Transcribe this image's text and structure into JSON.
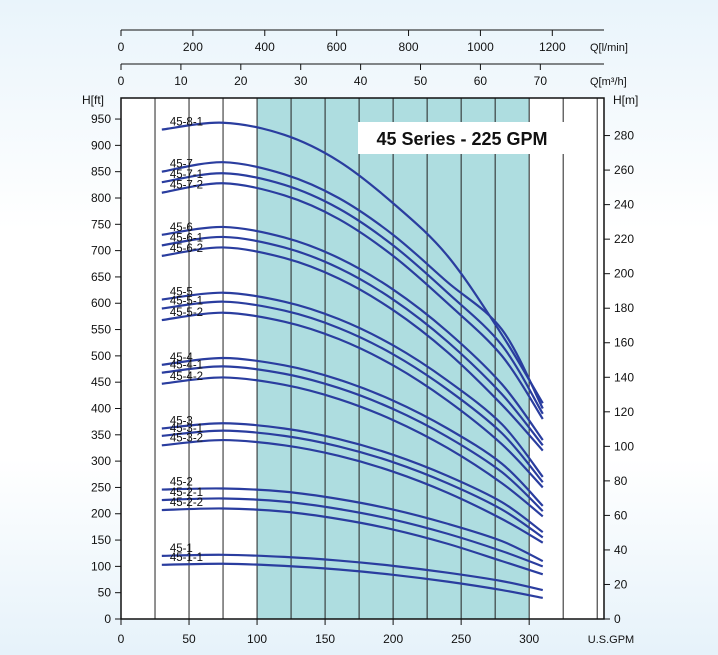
{
  "chart_data": {
    "type": "line",
    "title": "45 Series - 225 GPM",
    "x_axis_bottom": {
      "unit": "U.S.GPM",
      "ticks": [
        0,
        50,
        100,
        150,
        200,
        250,
        300
      ],
      "range": [
        0,
        355
      ]
    },
    "x_axis_top1": {
      "unit": "Q[l/min]",
      "ticks": [
        0,
        200,
        400,
        600,
        800,
        1000,
        1200
      ]
    },
    "x_axis_top2": {
      "unit": "Q[m³/h]",
      "ticks": [
        0,
        10,
        20,
        30,
        40,
        50,
        60,
        70
      ]
    },
    "y_axis_left": {
      "unit": "H[ft]",
      "ticks": [
        0,
        50,
        100,
        150,
        200,
        250,
        300,
        350,
        400,
        450,
        500,
        550,
        600,
        650,
        700,
        750,
        800,
        850,
        900,
        950
      ],
      "range": [
        0,
        990
      ]
    },
    "y_axis_right": {
      "unit": "H[m]",
      "ticks": [
        0,
        20,
        40,
        60,
        80,
        100,
        120,
        140,
        160,
        180,
        200,
        220,
        240,
        260,
        280
      ]
    },
    "recommended_range": {
      "x_from": 100,
      "x_to": 300,
      "color": "#aedde0"
    },
    "curve_color": "#2a3d9f",
    "series": [
      {
        "name": "45-8-1",
        "x": [
          30,
          75,
          120,
          160,
          200,
          240,
          280,
          310
        ],
        "y": [
          930,
          943,
          920,
          870,
          790,
          690,
          540,
          410
        ]
      },
      {
        "name": "45-7",
        "x": [
          30,
          75,
          120,
          160,
          200,
          240,
          280,
          310
        ],
        "y": [
          850,
          868,
          845,
          800,
          730,
          640,
          550,
          400
        ]
      },
      {
        "name": "45-7-1",
        "x": [
          30,
          75,
          120,
          160,
          200,
          240,
          280,
          310
        ],
        "y": [
          830,
          847,
          825,
          780,
          710,
          620,
          520,
          390
        ]
      },
      {
        "name": "45-7-2",
        "x": [
          30,
          75,
          120,
          160,
          200,
          240,
          280,
          310
        ],
        "y": [
          810,
          828,
          805,
          760,
          690,
          600,
          500,
          380
        ]
      },
      {
        "name": "45-6",
        "x": [
          30,
          75,
          120,
          160,
          200,
          240,
          280,
          310
        ],
        "y": [
          730,
          745,
          725,
          686,
          626,
          546,
          446,
          340
        ]
      },
      {
        "name": "45-6-1",
        "x": [
          30,
          75,
          120,
          160,
          200,
          240,
          280,
          310
        ],
        "y": [
          710,
          726,
          706,
          667,
          607,
          527,
          427,
          330
        ]
      },
      {
        "name": "45-6-2",
        "x": [
          30,
          75,
          120,
          160,
          200,
          240,
          280,
          310
        ],
        "y": [
          690,
          706,
          686,
          647,
          587,
          507,
          407,
          320
        ]
      },
      {
        "name": "45-5",
        "x": [
          30,
          75,
          120,
          160,
          200,
          240,
          280,
          310
        ],
        "y": [
          607,
          620,
          603,
          570,
          520,
          453,
          370,
          270
        ]
      },
      {
        "name": "45-5-1",
        "x": [
          30,
          75,
          120,
          160,
          200,
          240,
          280,
          310
        ],
        "y": [
          590,
          603,
          586,
          553,
          503,
          436,
          353,
          260
        ]
      },
      {
        "name": "45-5-2",
        "x": [
          30,
          75,
          120,
          160,
          200,
          240,
          280,
          310
        ],
        "y": [
          568,
          582,
          565,
          532,
          482,
          415,
          332,
          250
        ]
      },
      {
        "name": "45-4",
        "x": [
          30,
          75,
          120,
          160,
          200,
          240,
          280,
          310
        ],
        "y": [
          483,
          496,
          482,
          455,
          415,
          362,
          295,
          215
        ]
      },
      {
        "name": "45-4-1",
        "x": [
          30,
          75,
          120,
          160,
          200,
          240,
          280,
          310
        ],
        "y": [
          468,
          480,
          466,
          439,
          399,
          346,
          279,
          205
        ]
      },
      {
        "name": "45-4-2",
        "x": [
          30,
          75,
          120,
          160,
          200,
          240,
          280,
          310
        ],
        "y": [
          447,
          459,
          445,
          418,
          378,
          325,
          258,
          195
        ]
      },
      {
        "name": "45-3",
        "x": [
          30,
          75,
          120,
          160,
          200,
          240,
          280,
          310
        ],
        "y": [
          362,
          372,
          362,
          342,
          312,
          272,
          222,
          165
        ]
      },
      {
        "name": "45-3-1",
        "x": [
          30,
          75,
          120,
          160,
          200,
          240,
          280,
          310
        ],
        "y": [
          348,
          358,
          348,
          328,
          298,
          258,
          208,
          155
        ]
      },
      {
        "name": "45-3-2",
        "x": [
          30,
          75,
          120,
          160,
          200,
          240,
          280,
          310
        ],
        "y": [
          330,
          340,
          330,
          310,
          280,
          240,
          190,
          145
        ]
      },
      {
        "name": "45-2",
        "x": [
          30,
          75,
          120,
          160,
          200,
          240,
          280,
          310
        ],
        "y": [
          246,
          248,
          242,
          228,
          208,
          181,
          148,
          110
        ]
      },
      {
        "name": "45-2-1",
        "x": [
          30,
          75,
          120,
          160,
          200,
          240,
          280,
          310
        ],
        "y": [
          226,
          229,
          223,
          209,
          189,
          162,
          129,
          100
        ]
      },
      {
        "name": "45-2-2",
        "x": [
          30,
          75,
          120,
          160,
          200,
          240,
          280,
          310
        ],
        "y": [
          207,
          210,
          204,
          190,
          170,
          143,
          110,
          85
        ]
      },
      {
        "name": "45-1",
        "x": [
          30,
          75,
          120,
          160,
          200,
          240,
          280,
          310
        ],
        "y": [
          120,
          122,
          118,
          111,
          101,
          88,
          72,
          55
        ]
      },
      {
        "name": "45-1-1",
        "x": [
          30,
          75,
          120,
          160,
          200,
          240,
          280,
          310
        ],
        "y": [
          103,
          105,
          101,
          94,
          84,
          71,
          55,
          40
        ]
      }
    ]
  }
}
